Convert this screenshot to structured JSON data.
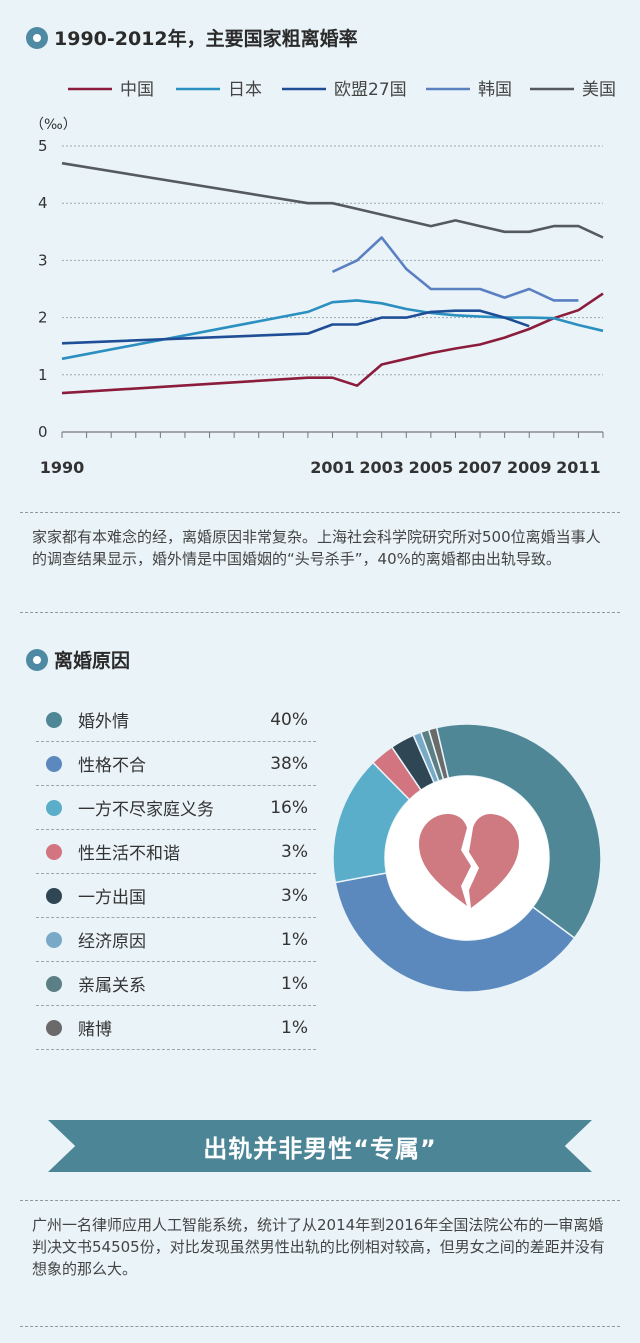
{
  "section1": {
    "title": "1990-2012年，主要国家粗离婚率"
  },
  "paragraph1": "家家都有本难念的经，离婚原因非常复杂。上海社会科学院研究所对500位离婚当事人的调查结果显示，婚外情是中国婚姻的“头号杀手”，40%的离婚都由出轨导致。",
  "section2": {
    "title": "离婚原因"
  },
  "banner": "出轨并非男性“专属”",
  "paragraph2": "广州一名律师应用人工智能系统，统计了从2014年到2016年全国法院公布的一审离婚判决文书54505份，对比发现虽然男性出轨的比例相对较高，但男女之间的差距并没有想象的那么大。",
  "chart_data": [
    {
      "type": "line",
      "title": "1990-2012年，主要国家粗离婚率",
      "ylabel": "（‰）",
      "ylim": [
        0,
        5
      ],
      "yticks": [
        "0",
        "1",
        "2",
        "3",
        "4",
        "5"
      ],
      "xlim": [
        1990,
        2012
      ],
      "xticks": [
        {
          "value": 1990,
          "label": "1990"
        },
        {
          "value": 2001,
          "label": "2001"
        },
        {
          "value": 2003,
          "label": "2003"
        },
        {
          "value": 2005,
          "label": "2005"
        },
        {
          "value": 2007,
          "label": "2007"
        },
        {
          "value": 2009,
          "label": "2009"
        },
        {
          "value": 2011,
          "label": "2011"
        }
      ],
      "grid": true,
      "legend_position": "top",
      "series": [
        {
          "name": "中国",
          "color": "#8c1c3c",
          "x": [
            1990,
            2000,
            2001,
            2002,
            2003,
            2004,
            2005,
            2006,
            2007,
            2008,
            2009,
            2010,
            2011,
            2012
          ],
          "y": [
            0.68,
            0.95,
            0.95,
            0.81,
            1.18,
            1.28,
            1.38,
            1.46,
            1.53,
            1.65,
            1.8,
            1.99,
            2.13,
            2.42
          ]
        },
        {
          "name": "日本",
          "color": "#2b8fc0",
          "x": [
            1990,
            2000,
            2001,
            2002,
            2003,
            2004,
            2005,
            2006,
            2007,
            2008,
            2009,
            2010,
            2011,
            2012
          ],
          "y": [
            1.28,
            2.1,
            2.27,
            2.3,
            2.25,
            2.15,
            2.08,
            2.04,
            2.02,
            2.0,
            2.0,
            1.99,
            1.87,
            1.77
          ]
        },
        {
          "name": "欧盟27国",
          "color": "#1f4e96",
          "x": [
            1990,
            2000,
            2001,
            2002,
            2003,
            2004,
            2005,
            2006,
            2007,
            2008,
            2009
          ],
          "y": [
            1.55,
            1.72,
            1.88,
            1.88,
            2.0,
            2.0,
            2.1,
            2.12,
            2.12,
            2.0,
            1.85
          ]
        },
        {
          "name": "韩国",
          "color": "#5b80c2",
          "x": [
            2001,
            2002,
            2003,
            2004,
            2005,
            2006,
            2007,
            2008,
            2009,
            2010,
            2011
          ],
          "y": [
            2.8,
            3.0,
            3.4,
            2.85,
            2.5,
            2.5,
            2.5,
            2.35,
            2.5,
            2.3,
            2.3
          ]
        },
        {
          "name": "美国",
          "color": "#555a5e",
          "x": [
            1990,
            2000,
            2001,
            2002,
            2003,
            2004,
            2005,
            2006,
            2007,
            2008,
            2009,
            2010,
            2011,
            2012
          ],
          "y": [
            4.7,
            4.0,
            4.0,
            3.9,
            3.8,
            3.7,
            3.6,
            3.7,
            3.6,
            3.5,
            3.5,
            3.6,
            3.6,
            3.4
          ]
        }
      ]
    },
    {
      "type": "pie",
      "title": "离婚原因",
      "categories": [
        "婚外情",
        "性格不合",
        "一方不尽家庭义务",
        "性生活不和谐",
        "一方出国",
        "经济原因",
        "亲属关系",
        "赌博"
      ],
      "labels": [
        "40%",
        "38%",
        "16%",
        "3%",
        "3%",
        "1%",
        "1%",
        "1%"
      ],
      "values": [
        40,
        38,
        16,
        3,
        3,
        1,
        1,
        1
      ],
      "colors": [
        "#4f8796",
        "#5b89bd",
        "#5aaec9",
        "#d37580",
        "#2f4655",
        "#78a9c7",
        "#5c7f86",
        "#6a6a6a"
      ],
      "center_icon": "broken-heart-icon",
      "center_color": "#ce7a80"
    }
  ]
}
